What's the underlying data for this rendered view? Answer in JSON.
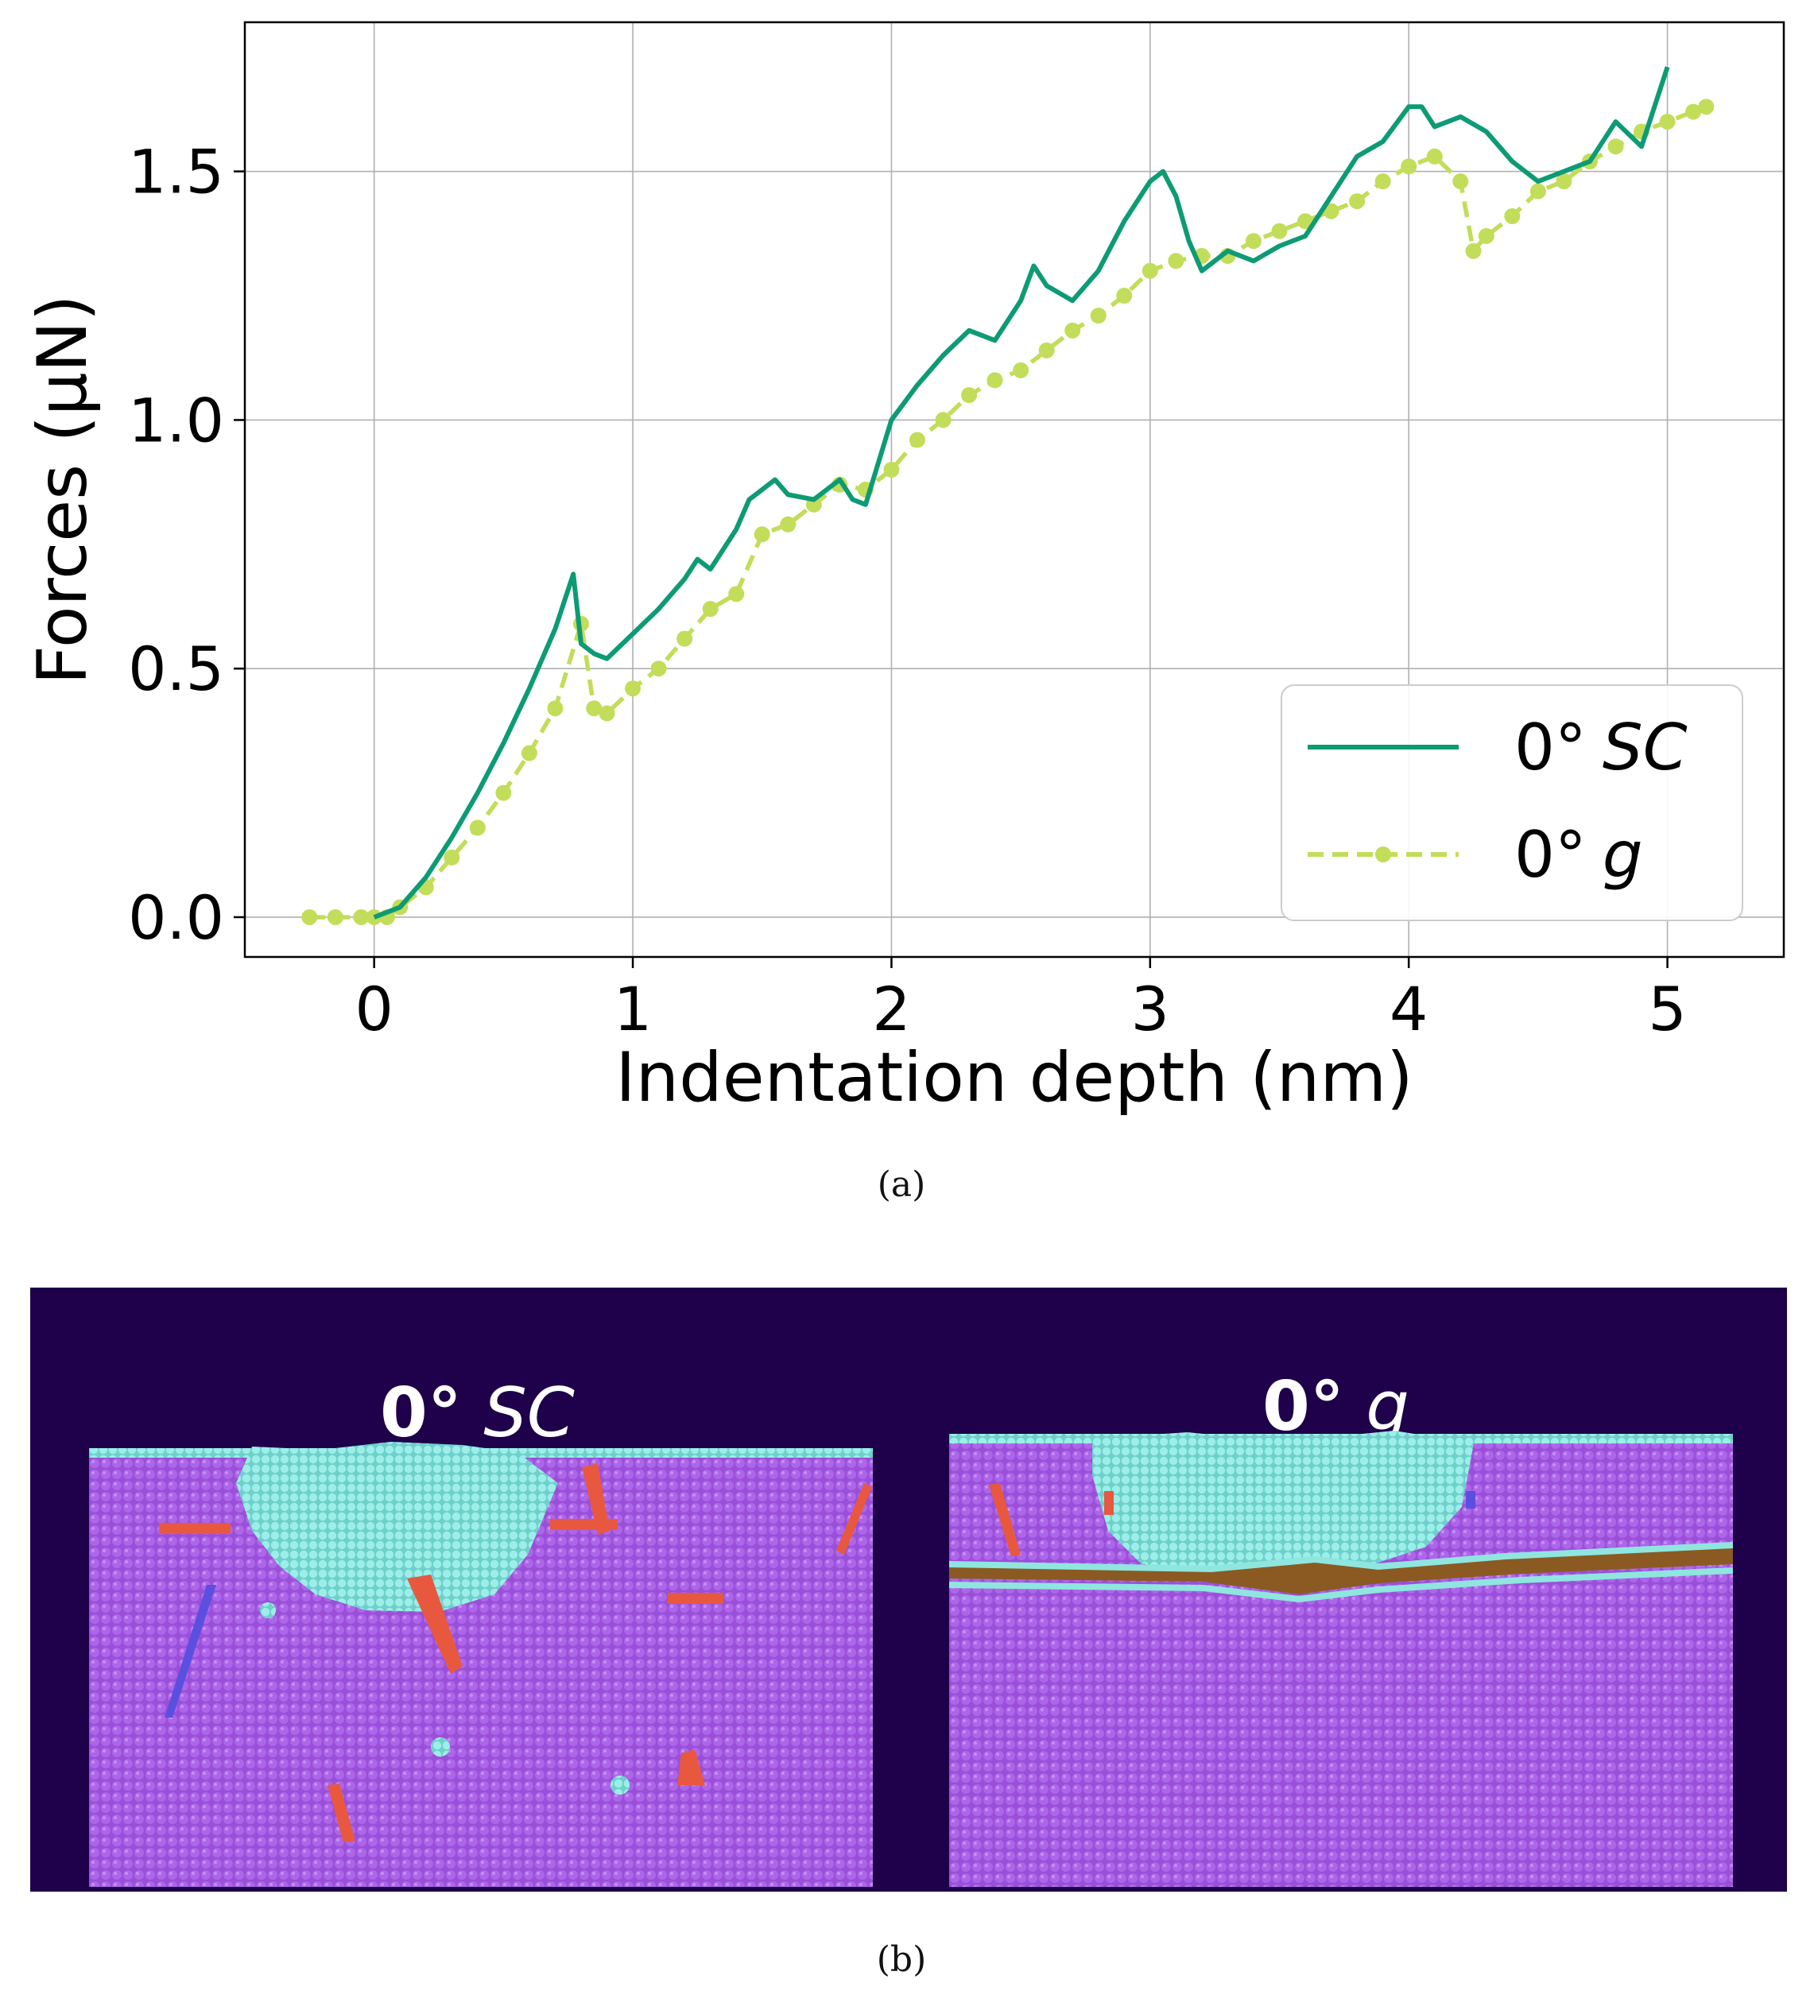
{
  "chart_data": {
    "type": "line",
    "title": "",
    "xlabel": "Indentation depth (nm)",
    "ylabel": "Forces (μN)",
    "xlim": [
      -0.5,
      5.45
    ],
    "ylim": [
      -0.08,
      1.8
    ],
    "xticks": [
      0,
      1,
      2,
      3,
      4,
      5
    ],
    "yticks": [
      0.0,
      0.5,
      1.0,
      1.5
    ],
    "xtick_labels": [
      "0",
      "1",
      "2",
      "3",
      "4",
      "5"
    ],
    "ytick_labels": [
      "0.0",
      "0.5",
      "1.0",
      "1.5"
    ],
    "grid": true,
    "legend_position": "lower-right",
    "series": [
      {
        "name": "0° SC",
        "legend_prefix": "0°",
        "legend_italic": "SC",
        "color": "#0d9b74",
        "style": "solid",
        "x": [
          0.0,
          0.1,
          0.2,
          0.3,
          0.4,
          0.5,
          0.6,
          0.7,
          0.77,
          0.8,
          0.85,
          0.9,
          1.0,
          1.1,
          1.2,
          1.25,
          1.3,
          1.4,
          1.45,
          1.5,
          1.55,
          1.6,
          1.7,
          1.8,
          1.85,
          1.9,
          2.0,
          2.1,
          2.2,
          2.3,
          2.4,
          2.5,
          2.55,
          2.6,
          2.7,
          2.8,
          2.9,
          3.0,
          3.05,
          3.1,
          3.15,
          3.2,
          3.3,
          3.4,
          3.5,
          3.6,
          3.7,
          3.8,
          3.9,
          4.0,
          4.05,
          4.1,
          4.2,
          4.3,
          4.4,
          4.5,
          4.6,
          4.7,
          4.8,
          4.9,
          5.0
        ],
        "y": [
          0.0,
          0.02,
          0.08,
          0.16,
          0.25,
          0.35,
          0.46,
          0.58,
          0.69,
          0.55,
          0.53,
          0.52,
          0.57,
          0.62,
          0.68,
          0.72,
          0.7,
          0.78,
          0.84,
          0.86,
          0.88,
          0.85,
          0.84,
          0.88,
          0.84,
          0.83,
          1.0,
          1.07,
          1.13,
          1.18,
          1.16,
          1.24,
          1.31,
          1.27,
          1.24,
          1.3,
          1.4,
          1.48,
          1.5,
          1.45,
          1.36,
          1.3,
          1.34,
          1.32,
          1.35,
          1.37,
          1.45,
          1.53,
          1.56,
          1.63,
          1.63,
          1.59,
          1.61,
          1.58,
          1.52,
          1.48,
          1.5,
          1.52,
          1.6,
          1.55,
          1.71
        ]
      },
      {
        "name": "0° g",
        "legend_prefix": "0°",
        "legend_italic": "g",
        "color": "#c2dd59",
        "style": "dashed-circles",
        "x": [
          -0.25,
          -0.15,
          -0.05,
          0.0,
          0.05,
          0.1,
          0.2,
          0.3,
          0.4,
          0.5,
          0.6,
          0.7,
          0.8,
          0.85,
          0.9,
          1.0,
          1.1,
          1.2,
          1.3,
          1.4,
          1.5,
          1.6,
          1.7,
          1.8,
          1.9,
          2.0,
          2.1,
          2.2,
          2.3,
          2.4,
          2.5,
          2.6,
          2.7,
          2.8,
          2.9,
          3.0,
          3.1,
          3.2,
          3.3,
          3.4,
          3.5,
          3.6,
          3.7,
          3.8,
          3.9,
          4.0,
          4.1,
          4.2,
          4.25,
          4.3,
          4.4,
          4.5,
          4.6,
          4.7,
          4.8,
          4.9,
          5.0,
          5.1,
          5.15
        ],
        "y": [
          0.0,
          0.0,
          0.0,
          0.0,
          0.0,
          0.02,
          0.06,
          0.12,
          0.18,
          0.25,
          0.33,
          0.42,
          0.59,
          0.42,
          0.41,
          0.46,
          0.5,
          0.56,
          0.62,
          0.65,
          0.77,
          0.79,
          0.83,
          0.87,
          0.86,
          0.9,
          0.96,
          1.0,
          1.05,
          1.08,
          1.1,
          1.14,
          1.18,
          1.21,
          1.25,
          1.3,
          1.32,
          1.33,
          1.33,
          1.36,
          1.38,
          1.4,
          1.42,
          1.44,
          1.48,
          1.51,
          1.53,
          1.48,
          1.34,
          1.37,
          1.41,
          1.46,
          1.48,
          1.52,
          1.55,
          1.58,
          1.6,
          1.62,
          1.63
        ]
      }
    ]
  },
  "captions": {
    "a": "(a)",
    "b": "(b)"
  },
  "panel_b": {
    "background_color": "#1e014a",
    "left": {
      "title_bold": "0°",
      "title_italic": "SC"
    },
    "right": {
      "title_bold": "0°",
      "title_italic": "g"
    },
    "colors": {
      "matrix": "#a95de6",
      "amorphous": "#8ee6df",
      "defect_red": "#e8583f",
      "defect_blue": "#5b4fe0",
      "graphene": "#8a5a22"
    }
  }
}
